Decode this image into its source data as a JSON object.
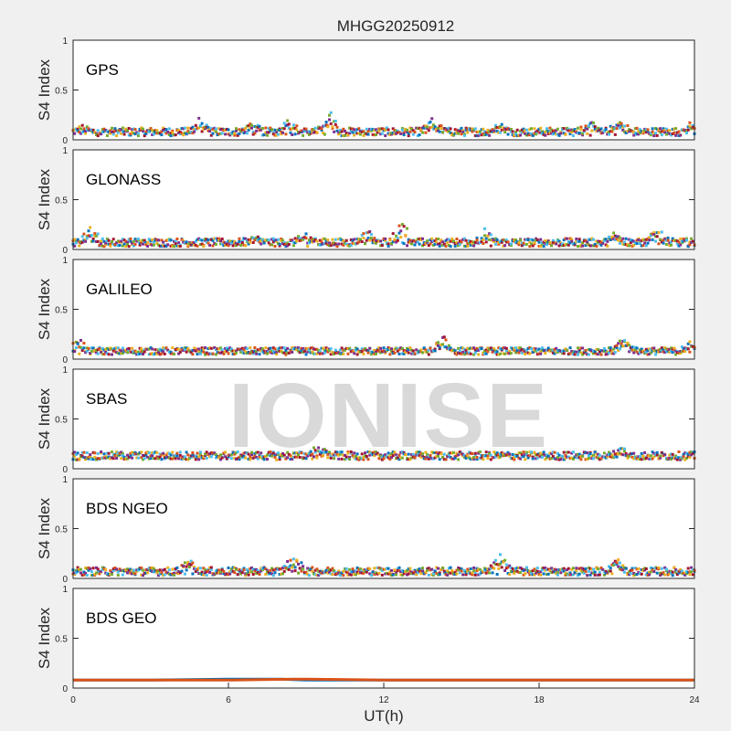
{
  "figure_title": "MHGG20250912",
  "xlabel": "UT(h)",
  "watermark": "IONISE",
  "series_colors": [
    "#0072BD",
    "#D95319",
    "#EDB120",
    "#7E2F8E",
    "#77AC30",
    "#4DBEEE",
    "#A2142F"
  ],
  "chart_data": [
    {
      "type": "scatter",
      "panel_label": "GPS",
      "ylabel": "S4 Index",
      "xlim": [
        0,
        24
      ],
      "ylim": [
        0,
        1
      ],
      "xticks": [],
      "yticks": [
        0,
        0.5,
        1
      ],
      "ytick_labels": [
        "0",
        "0.5",
        "1"
      ],
      "baseline": 0.08,
      "spread": 0.04,
      "bumps": [
        [
          0.4,
          0.12
        ],
        [
          4.9,
          0.2
        ],
        [
          6.9,
          0.15
        ],
        [
          8.3,
          0.22
        ],
        [
          9.9,
          0.3
        ],
        [
          13.9,
          0.2
        ],
        [
          16.5,
          0.18
        ],
        [
          19.9,
          0.18
        ],
        [
          21.1,
          0.2
        ],
        [
          23.9,
          0.15
        ]
      ]
    },
    {
      "type": "scatter",
      "panel_label": "GLONASS",
      "ylabel": "S4 Index",
      "xlim": [
        0,
        24
      ],
      "ylim": [
        0,
        1
      ],
      "xticks": [],
      "yticks": [
        0,
        0.5,
        1
      ],
      "ytick_labels": [
        "0",
        "0.5",
        "1"
      ],
      "baseline": 0.07,
      "spread": 0.04,
      "bumps": [
        [
          0.7,
          0.23
        ],
        [
          7.0,
          0.12
        ],
        [
          9.0,
          0.15
        ],
        [
          11.3,
          0.2
        ],
        [
          12.7,
          0.3
        ],
        [
          15.9,
          0.18
        ],
        [
          21.0,
          0.18
        ],
        [
          22.6,
          0.22
        ]
      ]
    },
    {
      "type": "scatter",
      "panel_label": "GALILEO",
      "ylabel": "S4 Index",
      "xlim": [
        0,
        24
      ],
      "ylim": [
        0,
        1
      ],
      "xticks": [],
      "yticks": [
        0,
        0.5,
        1
      ],
      "ytick_labels": [
        "0",
        "0.5",
        "1"
      ],
      "baseline": 0.08,
      "spread": 0.035,
      "bumps": [
        [
          0.2,
          0.2
        ],
        [
          14.3,
          0.25
        ],
        [
          21.3,
          0.22
        ],
        [
          23.9,
          0.17
        ]
      ]
    },
    {
      "type": "scatter",
      "panel_label": "SBAS",
      "ylabel": "S4 Index",
      "xlim": [
        0,
        24
      ],
      "ylim": [
        0,
        1
      ],
      "xticks": [],
      "yticks": [
        0,
        0.5,
        1
      ],
      "ytick_labels": [
        "0",
        "0.5",
        "1"
      ],
      "baseline": 0.13,
      "spread": 0.04,
      "bumps": [
        [
          9.5,
          0.22
        ],
        [
          21.2,
          0.22
        ]
      ]
    },
    {
      "type": "scatter",
      "panel_label": "BDS NGEO",
      "ylabel": "S4 Index",
      "xlim": [
        0,
        24
      ],
      "ylim": [
        0,
        1
      ],
      "xticks": [],
      "yticks": [
        0,
        0.5,
        1
      ],
      "ytick_labels": [
        "0",
        "0.5",
        "1"
      ],
      "baseline": 0.07,
      "spread": 0.04,
      "bumps": [
        [
          4.5,
          0.18
        ],
        [
          8.5,
          0.25
        ],
        [
          16.5,
          0.24
        ],
        [
          21.0,
          0.2
        ]
      ]
    },
    {
      "type": "line",
      "panel_label": "BDS GEO",
      "ylabel": "S4 Index",
      "xlim": [
        0,
        24
      ],
      "ylim": [
        0,
        1
      ],
      "xticks": [
        0,
        6,
        12,
        18,
        24
      ],
      "xtick_labels": [
        "0",
        "6",
        "12",
        "18",
        "24"
      ],
      "yticks": [
        0,
        0.5,
        1
      ],
      "ytick_labels": [
        "0",
        "0.5",
        "1"
      ],
      "series": [
        {
          "x": [
            0,
            3,
            6,
            8,
            9,
            12,
            15,
            18,
            21,
            24
          ],
          "y": [
            0.08,
            0.08,
            0.09,
            0.09,
            0.08,
            0.08,
            0.08,
            0.08,
            0.08,
            0.08
          ]
        },
        {
          "x": [
            0,
            3,
            6,
            8.5,
            9,
            12,
            15,
            18,
            21,
            24
          ],
          "y": [
            0.08,
            0.08,
            0.08,
            0.09,
            0.09,
            0.08,
            0.08,
            0.08,
            0.08,
            0.08
          ]
        }
      ]
    }
  ]
}
